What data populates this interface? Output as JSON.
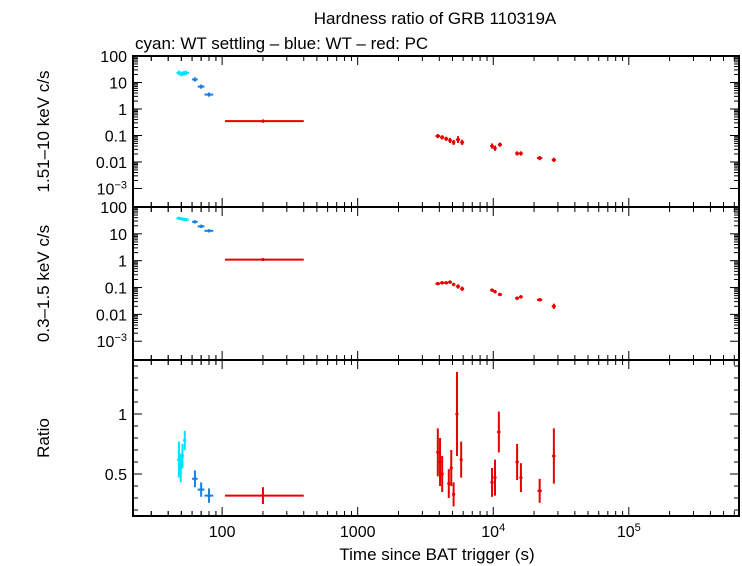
{
  "title_line1": "Hardness ratio of GRB 110319A",
  "title_line2": "cyan: WT settling – blue: WT – red: PC",
  "colors": {
    "cyan": "#00e5ff",
    "blue": "#1a7fe6",
    "red": "#e60000"
  },
  "chart_data": [
    {
      "type": "scatter",
      "panel": "hard",
      "ylabel": "1.51–10 keV c/s",
      "ylog": true,
      "ylim": [
        0.0002,
        100
      ],
      "yticks": [
        {
          "v": 100,
          "label": "100"
        },
        {
          "v": 10,
          "label": "10"
        },
        {
          "v": 1,
          "label": "1"
        },
        {
          "v": 0.1,
          "label": "0.1"
        },
        {
          "v": 0.01,
          "label": "0.01"
        },
        {
          "v": 0.001,
          "label": "10",
          "sup": "−3"
        }
      ],
      "series": [
        {
          "color": "cyan",
          "points": [
            [
              48,
              23,
              2,
              4,
              0.22
            ],
            [
              50,
              21,
              2,
              3,
              0.22
            ],
            [
              52,
              22,
              2,
              3,
              0.22
            ],
            [
              54,
              23,
              2,
              3,
              0.22
            ]
          ]
        },
        {
          "color": "blue",
          "points": [
            [
              63,
              13,
              3,
              3,
              0.2
            ],
            [
              70,
              7,
              4,
              4,
              0.2
            ],
            [
              80,
              3.5,
              6,
              6,
              0.2
            ]
          ]
        },
        {
          "color": "red",
          "points": [
            [
              200,
              0.35,
              95,
              200,
              0.15
            ],
            [
              3900,
              0.095,
              150,
              150,
              0.2
            ],
            [
              4200,
              0.085,
              150,
              150,
              0.2
            ],
            [
              4500,
              0.075,
              150,
              150,
              0.2
            ],
            [
              4800,
              0.065,
              150,
              150,
              0.25
            ],
            [
              5100,
              0.055,
              150,
              150,
              0.25
            ],
            [
              5500,
              0.07,
              200,
              200,
              0.35
            ],
            [
              5900,
              0.055,
              200,
              200,
              0.25
            ],
            [
              9800,
              0.04,
              300,
              300,
              0.25
            ],
            [
              10300,
              0.033,
              300,
              300,
              0.25
            ],
            [
              11200,
              0.045,
              400,
              400,
              0.2
            ],
            [
              15000,
              0.021,
              500,
              500,
              0.2
            ],
            [
              16000,
              0.021,
              500,
              500,
              0.2
            ],
            [
              22000,
              0.014,
              1000,
              1000,
              0.2
            ],
            [
              28000,
              0.012,
              1000,
              1000,
              0.2
            ]
          ]
        }
      ]
    },
    {
      "type": "scatter",
      "panel": "soft",
      "ylabel": "0.3–1.5 keV c/s",
      "ylog": true,
      "ylim": [
        0.0002,
        100
      ],
      "yticks": [
        {
          "v": 100,
          "label": "100"
        },
        {
          "v": 10,
          "label": "10"
        },
        {
          "v": 1,
          "label": "1"
        },
        {
          "v": 0.1,
          "label": "0.1"
        },
        {
          "v": 0.01,
          "label": "0.01"
        },
        {
          "v": 0.001,
          "label": "10",
          "sup": "−3"
        }
      ],
      "series": [
        {
          "color": "cyan",
          "points": [
            [
              48,
              38,
              2,
              3,
              0.12
            ],
            [
              50,
              36,
              2,
              3,
              0.12
            ],
            [
              52,
              35,
              2,
              3,
              0.12
            ],
            [
              54,
              34,
              2,
              3,
              0.12
            ]
          ]
        },
        {
          "color": "blue",
          "points": [
            [
              63,
              28,
              3,
              3,
              0.15
            ],
            [
              70,
              19,
              4,
              4,
              0.15
            ],
            [
              80,
              13,
              6,
              6,
              0.15
            ]
          ]
        },
        {
          "color": "red",
          "points": [
            [
              200,
              1.1,
              95,
              200,
              0.1
            ],
            [
              3900,
              0.14,
              150,
              150,
              0.15
            ],
            [
              4200,
              0.15,
              150,
              150,
              0.15
            ],
            [
              4500,
              0.15,
              150,
              150,
              0.15
            ],
            [
              4800,
              0.16,
              150,
              150,
              0.15
            ],
            [
              5100,
              0.13,
              150,
              150,
              0.15
            ],
            [
              5500,
              0.11,
              200,
              200,
              0.2
            ],
            [
              5900,
              0.09,
              200,
              200,
              0.2
            ],
            [
              9800,
              0.08,
              300,
              300,
              0.15
            ],
            [
              10300,
              0.07,
              300,
              300,
              0.15
            ],
            [
              11200,
              0.055,
              400,
              400,
              0.15
            ],
            [
              15000,
              0.04,
              500,
              500,
              0.15
            ],
            [
              16000,
              0.045,
              500,
              500,
              0.15
            ],
            [
              22000,
              0.035,
              1000,
              1000,
              0.15
            ],
            [
              28000,
              0.02,
              1000,
              1000,
              0.25
            ]
          ]
        }
      ]
    },
    {
      "type": "scatter",
      "panel": "ratio",
      "ylabel": "Ratio",
      "ylog": false,
      "ylim": [
        0.15,
        1.45
      ],
      "yticks": [
        {
          "v": 1,
          "label": "1"
        },
        {
          "v": 0.5,
          "label": "0.5"
        }
      ],
      "series": [
        {
          "color": "cyan",
          "points": [
            [
              48,
              0.62,
              1.5,
              1.5,
              0.15
            ],
            [
              49.5,
              0.55,
              1.5,
              1.5,
              0.12
            ],
            [
              51,
              0.65,
              1.5,
              1.5,
              0.1
            ],
            [
              53,
              0.78,
              1.5,
              1.5,
              0.08
            ]
          ]
        },
        {
          "color": "blue",
          "points": [
            [
              63,
              0.46,
              3,
              3,
              0.07
            ],
            [
              70,
              0.37,
              4,
              4,
              0.06
            ],
            [
              80,
              0.32,
              6,
              6,
              0.06
            ]
          ]
        },
        {
          "color": "red",
          "points": [
            [
              200,
              0.32,
              95,
              200,
              0.07
            ],
            [
              3900,
              0.68,
              80,
              80,
              0.2
            ],
            [
              4050,
              0.6,
              80,
              80,
              0.2
            ],
            [
              4200,
              0.5,
              80,
              80,
              0.15
            ],
            [
              4700,
              0.42,
              80,
              80,
              0.12
            ],
            [
              4900,
              0.55,
              80,
              80,
              0.15
            ],
            [
              5100,
              0.33,
              80,
              80,
              0.1
            ],
            [
              5400,
              1.0,
              120,
              120,
              0.35
            ],
            [
              5800,
              0.62,
              120,
              120,
              0.15
            ],
            [
              9800,
              0.43,
              250,
              250,
              0.12
            ],
            [
              10300,
              0.47,
              250,
              250,
              0.15
            ],
            [
              11000,
              0.85,
              300,
              300,
              0.17
            ],
            [
              15000,
              0.6,
              400,
              400,
              0.15
            ],
            [
              16000,
              0.47,
              400,
              400,
              0.12
            ],
            [
              22000,
              0.36,
              800,
              800,
              0.1
            ],
            [
              28000,
              0.65,
              800,
              800,
              0.23
            ]
          ]
        }
      ]
    }
  ],
  "x_axis": {
    "label": "Time since BAT trigger (s)",
    "log": true,
    "xlim": [
      22,
      650000
    ],
    "ticks": [
      {
        "v": 100,
        "label": "100"
      },
      {
        "v": 1000,
        "label": "1000"
      },
      {
        "v": 10000,
        "label": "10",
        "sup": "4"
      },
      {
        "v": 100000,
        "label": "10",
        "sup": "5"
      }
    ]
  }
}
